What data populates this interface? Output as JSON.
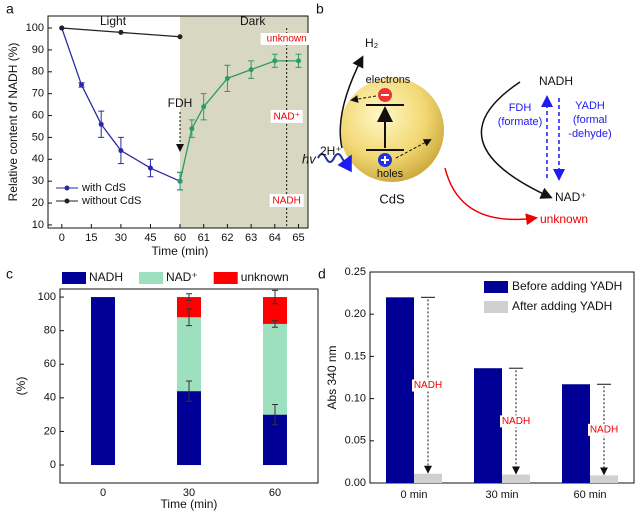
{
  "chart_data": [
    {
      "type": "line",
      "panel": "a",
      "xlabel": "Time (min)",
      "ylabel": "Relative content of NADH (%)",
      "xlim": [
        -7,
        65.4
      ],
      "xbreak": 60,
      "dark_color": "#d8d8c2",
      "ylim": [
        8.6,
        105.5
      ],
      "xticks": [
        0,
        15,
        30,
        45,
        60,
        61,
        62,
        63,
        64,
        65
      ],
      "yticks": [
        10,
        20,
        30,
        40,
        50,
        60,
        70,
        80,
        90,
        100
      ],
      "legend": "lower left",
      "annotations": {
        "light": "Light",
        "dark": "Dark",
        "fdh": "FDH",
        "unknown": "unknown",
        "nad": "NAD⁺",
        "nadh": "NADH"
      },
      "series": [
        {
          "name": "with CdS",
          "color": "#2a2aa8",
          "x": [
            0,
            10,
            20,
            30,
            45,
            60
          ],
          "values": [
            100,
            74,
            56,
            44,
            36,
            30
          ],
          "errors": [
            0,
            1,
            6,
            6,
            4,
            4
          ]
        },
        {
          "name": "without CdS",
          "color": "#222222",
          "x": [
            0,
            30,
            60
          ],
          "values": [
            100,
            98,
            96
          ]
        },
        {
          "color": "#2e9a6a",
          "x": [
            60,
            60.5,
            61,
            62,
            63,
            64,
            65
          ],
          "values": [
            30,
            54,
            64,
            77,
            81,
            85,
            85
          ],
          "errors": [
            4,
            4,
            6,
            6,
            4,
            3,
            3
          ]
        }
      ]
    },
    {
      "type": "stacked-bar",
      "panel": "c",
      "xlabel": "Time (min)",
      "ylabel": "(%)",
      "ylim": [
        -10.7,
        104.8
      ],
      "yticks": [
        0,
        20,
        40,
        60,
        80,
        100
      ],
      "categories": [
        "0",
        "30",
        "60"
      ],
      "legend": "top",
      "series": [
        {
          "name": "NADH",
          "color": "#000096",
          "values": [
            100,
            44,
            30
          ],
          "errors": [
            0,
            6,
            6
          ]
        },
        {
          "name": "NAD⁺",
          "color": "#9de0c0",
          "values": [
            0,
            44,
            54
          ],
          "errors": [
            0,
            5,
            2
          ]
        },
        {
          "name": "unknown",
          "color": "#ff0000",
          "values": [
            0,
            12,
            16
          ],
          "errors": [
            0,
            2,
            4
          ]
        }
      ]
    },
    {
      "type": "grouped-bar",
      "panel": "d",
      "ylabel": "Abs 340 nm",
      "ylim": [
        0,
        0.25
      ],
      "yticks": [
        {
          "value": 0,
          "label": "0.00"
        },
        {
          "value": 0.05,
          "label": "0.05"
        },
        {
          "value": 0.1,
          "label": "0.10"
        },
        {
          "value": 0.15,
          "label": "0.15"
        },
        {
          "value": 0.2,
          "label": "0.20"
        },
        {
          "value": 0.25,
          "label": "0.25"
        }
      ],
      "categories": [
        "0 min",
        "30 min",
        "60 min"
      ],
      "legend": "upper right",
      "annotation": "NADH",
      "series": [
        {
          "name": "Before adding YADH",
          "color": "#000096",
          "values": [
            0.22,
            0.136,
            0.117
          ]
        },
        {
          "name": "After adding YADH",
          "color": "#d0d0d0",
          "values": [
            0.011,
            0.01,
            0.009
          ]
        }
      ]
    }
  ],
  "diagram": {
    "panel": "b",
    "h2": "H₂",
    "protons": "2H⁺",
    "electrons": "electrons",
    "holes": "holes",
    "light": "hv",
    "material": "CdS",
    "nadh": "NADH",
    "fdh": "FDH",
    "fdh_sub": "(formate)",
    "yadh": "YADH",
    "yadh_sub1": "(formal",
    "yadh_sub2": "-dehyde)",
    "nad": "NAD⁺",
    "unknown": "unknown"
  }
}
